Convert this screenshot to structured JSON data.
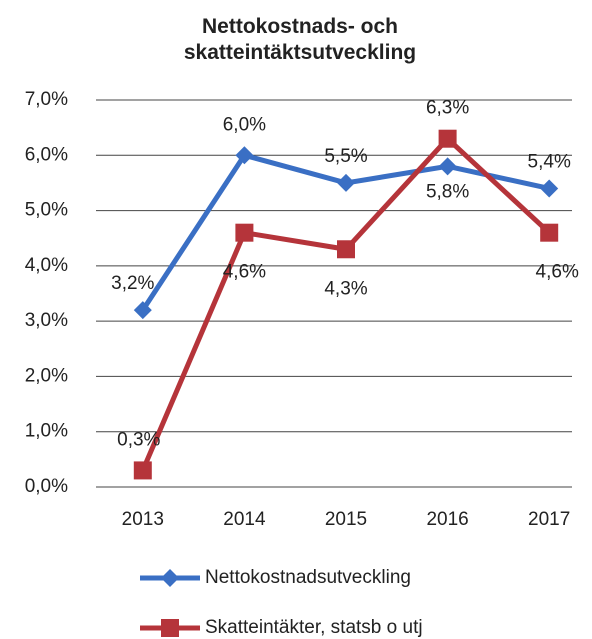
{
  "chart_data": {
    "type": "line",
    "title": "Nettokostnads- och skatteintäktsutveckling",
    "categories": [
      "2013",
      "2014",
      "2015",
      "2016",
      "2017"
    ],
    "series": [
      {
        "name": "Nettokostnadsutveckling",
        "color": "#3a6fc4",
        "marker": "diamond",
        "values": [
          3.2,
          6.0,
          5.5,
          5.8,
          5.4
        ],
        "value_labels": [
          "3,2%",
          "6,0%",
          "5,5%",
          "5,8%",
          "5,4%"
        ]
      },
      {
        "name": "Skatteintäkter, statsb o utj",
        "color": "#b5343a",
        "marker": "square",
        "values": [
          0.3,
          4.6,
          4.3,
          6.3,
          4.6
        ],
        "value_labels": [
          "0,3%",
          "4,6%",
          "4,3%",
          "6,3%",
          "4,6%"
        ]
      }
    ],
    "ylim": [
      0,
      7
    ],
    "yticks": [
      {
        "value": 0,
        "label": "0,0%"
      },
      {
        "value": 1,
        "label": "1,0%"
      },
      {
        "value": 2,
        "label": "2,0%"
      },
      {
        "value": 3,
        "label": "3,0%"
      },
      {
        "value": 4,
        "label": "4,0%"
      },
      {
        "value": 5,
        "label": "5,0%"
      },
      {
        "value": 6,
        "label": "6,0%"
      },
      {
        "value": 7,
        "label": "7,0%"
      }
    ],
    "grid": true,
    "legend": "bottom"
  }
}
